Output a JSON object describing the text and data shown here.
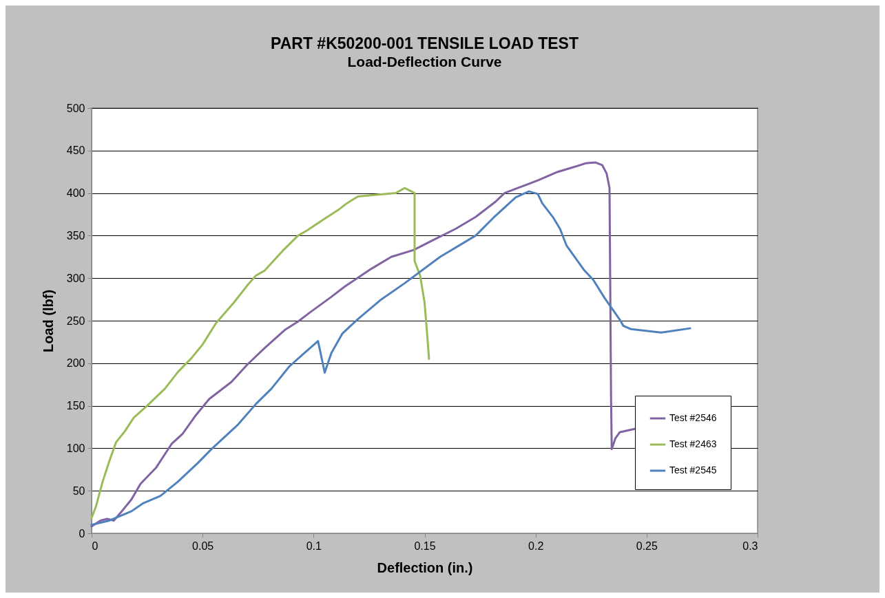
{
  "chart_data": {
    "type": "line",
    "title": "PART #K50200-001 TENSILE LOAD TEST",
    "subtitle": "Load-Deflection Curve",
    "xlabel": "Deflection (in.)",
    "ylabel": "Load (lbf)",
    "xlim": [
      0,
      0.3
    ],
    "xticks": [
      0,
      0.05,
      0.1,
      0.15,
      0.2,
      0.25,
      0.3
    ],
    "ylim": [
      0,
      500
    ],
    "yticks": [
      0,
      50,
      100,
      150,
      200,
      250,
      300,
      350,
      400,
      450,
      500
    ],
    "grid": "y",
    "legend": "bottom right",
    "marker": "none",
    "line_style": "solid",
    "series": [
      {
        "name": "Test #2546",
        "color": "#8064a2",
        "x": [
          0,
          0.004,
          0.007,
          0.01,
          0.013,
          0.018,
          0.022,
          0.029,
          0.036,
          0.041,
          0.047,
          0.053,
          0.063,
          0.07,
          0.078,
          0.087,
          0.093,
          0.098,
          0.108,
          0.114,
          0.126,
          0.135,
          0.145,
          0.154,
          0.164,
          0.173,
          0.182,
          0.186,
          0.191,
          0.201,
          0.21,
          0.219,
          0.2225,
          0.227,
          0.23,
          0.232,
          0.2333,
          0.234,
          0.2343,
          0.236,
          0.238,
          0.245
        ],
        "values": [
          8,
          15,
          17,
          15,
          24,
          40,
          58,
          77,
          105,
          117,
          139,
          158,
          178,
          198,
          218,
          239,
          249,
          259,
          278,
          290,
          311,
          325,
          333,
          345,
          358,
          372,
          390,
          400,
          405,
          415,
          425,
          432,
          435,
          436,
          433,
          423,
          406,
          158,
          99,
          112,
          119,
          123
        ]
      },
      {
        "name": "Test #2463",
        "color": "#9bbb59",
        "x": [
          0,
          0.002,
          0.005,
          0.008,
          0.011,
          0.015,
          0.019,
          0.025,
          0.033,
          0.039,
          0.045,
          0.05,
          0.056,
          0.064,
          0.07,
          0.074,
          0.078,
          0.086,
          0.093,
          0.097,
          0.105,
          0.111,
          0.115,
          0.12,
          0.137,
          0.141,
          0.1455,
          0.1455,
          0.148,
          0.15,
          0.151,
          0.152
        ],
        "values": [
          18,
          32,
          61,
          85,
          107,
          120,
          136,
          150,
          170,
          190,
          206,
          222,
          247,
          271,
          291,
          303,
          309,
          332,
          350,
          356,
          370,
          380,
          388,
          396,
          400,
          406,
          400,
          320,
          303,
          271,
          239,
          205
        ]
      },
      {
        "name": "Test #2545",
        "color": "#4f81bd",
        "x": [
          0,
          0.008,
          0.018,
          0.023,
          0.031,
          0.039,
          0.048,
          0.054,
          0.066,
          0.074,
          0.081,
          0.089,
          0.095,
          0.102,
          0.105,
          0.108,
          0.113,
          0.12,
          0.13,
          0.141,
          0.157,
          0.173,
          0.181,
          0.191,
          0.197,
          0.201,
          0.203,
          0.208,
          0.211,
          0.214,
          0.222,
          0.226,
          0.231,
          0.238,
          0.2395,
          0.243,
          0.2566,
          0.2696
        ],
        "values": [
          10,
          15,
          26,
          35,
          44,
          61,
          83,
          99,
          128,
          152,
          170,
          196,
          210,
          226,
          189,
          212,
          235,
          252,
          274,
          294,
          325,
          350,
          371,
          395,
          402,
          399,
          388,
          371,
          358,
          338,
          309,
          298,
          277,
          251,
          244,
          240,
          236,
          241
        ]
      }
    ]
  }
}
